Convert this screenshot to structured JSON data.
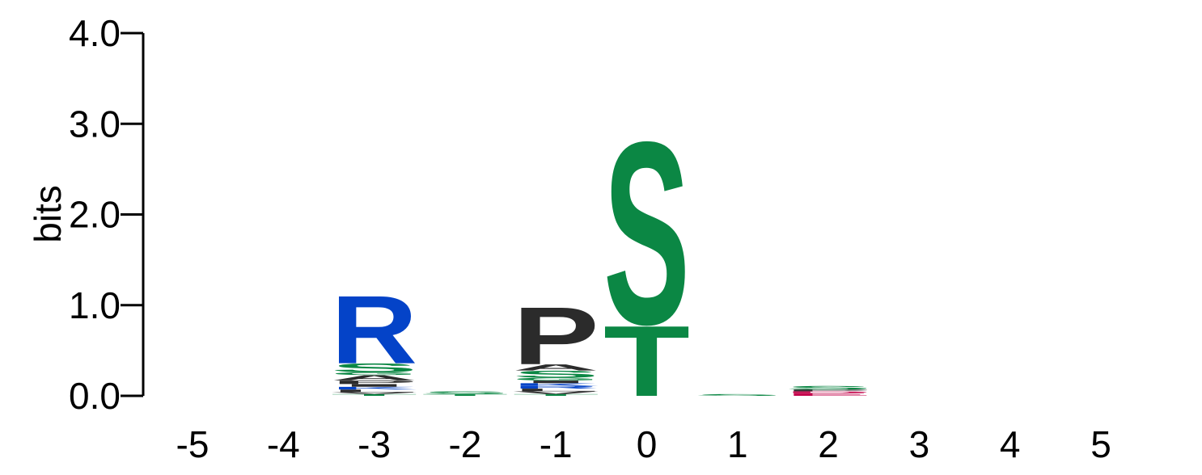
{
  "chart_data": {
    "type": "sequence-logo",
    "ylabel": "bits",
    "ylim": [
      0,
      4.0
    ],
    "yticks": [
      "0.0",
      "1.0",
      "2.0",
      "3.0",
      "4.0"
    ],
    "positions": [
      "-5",
      "-4",
      "-3",
      "-2",
      "-1",
      "0",
      "1",
      "2",
      "3",
      "4",
      "5"
    ],
    "colors": {
      "polar_green": "#0b8744",
      "basic_blue": "#0443c8",
      "hydrophobic_black": "#2b2b2b",
      "acidic_red": "#c4074d"
    },
    "stacks": [
      {
        "position": "-5",
        "letters": []
      },
      {
        "position": "-4",
        "letters": []
      },
      {
        "position": "-3",
        "letters": [
          {
            "letter": "T",
            "bits": 0.02,
            "color": "#0b8744"
          },
          {
            "letter": "V",
            "bits": 0.02,
            "color": "#2b2b2b"
          },
          {
            "letter": "L",
            "bits": 0.03,
            "color": "#2b2b2b"
          },
          {
            "letter": "K",
            "bits": 0.03,
            "color": "#0443c8"
          },
          {
            "letter": "I",
            "bits": 0.03,
            "color": "#2b2b2b"
          },
          {
            "letter": "P",
            "bits": 0.04,
            "color": "#2b2b2b"
          },
          {
            "letter": "A",
            "bits": 0.06,
            "color": "#2b2b2b"
          },
          {
            "letter": "G",
            "bits": 0.03,
            "color": "#0b8744"
          },
          {
            "letter": "S",
            "bits": 0.1,
            "color": "#0b8744"
          },
          {
            "letter": "R",
            "bits": 0.77,
            "color": "#0443c8"
          }
        ]
      },
      {
        "position": "-2",
        "letters": [
          {
            "letter": "T",
            "bits": 0.02,
            "color": "#0b8744"
          },
          {
            "letter": "S",
            "bits": 0.03,
            "color": "#0b8744"
          }
        ]
      },
      {
        "position": "-1",
        "letters": [
          {
            "letter": "T",
            "bits": 0.02,
            "color": "#0b8744"
          },
          {
            "letter": "V",
            "bits": 0.03,
            "color": "#2b2b2b"
          },
          {
            "letter": "L",
            "bits": 0.03,
            "color": "#2b2b2b"
          },
          {
            "letter": "R",
            "bits": 0.03,
            "color": "#0443c8"
          },
          {
            "letter": "K",
            "bits": 0.03,
            "color": "#0443c8"
          },
          {
            "letter": "I",
            "bits": 0.03,
            "color": "#2b2b2b"
          },
          {
            "letter": "G",
            "bits": 0.03,
            "color": "#0b8744"
          },
          {
            "letter": "S",
            "bits": 0.08,
            "color": "#0b8744"
          },
          {
            "letter": "A",
            "bits": 0.07,
            "color": "#2b2b2b"
          },
          {
            "letter": "P",
            "bits": 0.65,
            "color": "#2b2b2b"
          }
        ]
      },
      {
        "position": "0",
        "letters": [
          {
            "letter": "T",
            "bits": 0.8,
            "color": "#0b8744"
          },
          {
            "letter": "S",
            "bits": 2.07,
            "color": "#0b8744"
          }
        ]
      },
      {
        "position": "1",
        "letters": [
          {
            "letter": "S",
            "bits": 0.02,
            "color": "#0b8744"
          }
        ]
      },
      {
        "position": "2",
        "letters": [
          {
            "letter": "E",
            "bits": 0.03,
            "color": "#c4074d"
          },
          {
            "letter": "D",
            "bits": 0.02,
            "color": "#c4074d"
          },
          {
            "letter": "P",
            "bits": 0.02,
            "color": "#2b2b2b"
          },
          {
            "letter": "S",
            "bits": 0.04,
            "color": "#0b8744"
          }
        ]
      },
      {
        "position": "3",
        "letters": []
      },
      {
        "position": "4",
        "letters": []
      },
      {
        "position": "5",
        "letters": []
      }
    ]
  }
}
